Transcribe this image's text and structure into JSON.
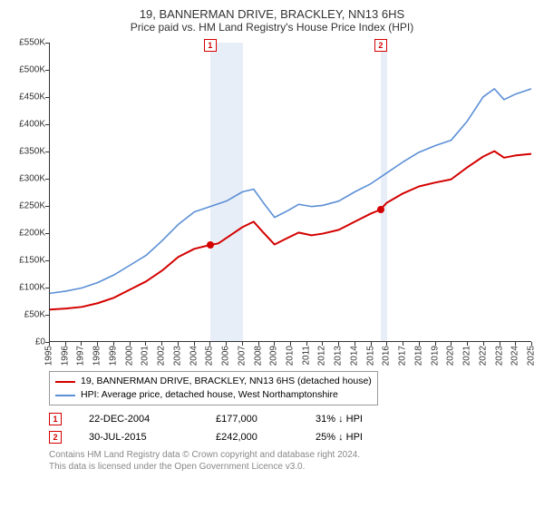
{
  "title": "19, BANNERMAN DRIVE, BRACKLEY, NN13 6HS",
  "subtitle": "Price paid vs. HM Land Registry's House Price Index (HPI)",
  "chart": {
    "type": "line",
    "background_color": "#ffffff",
    "grid_color": "#e0e0e0",
    "axis_color": "#333333",
    "label_fontsize": 10,
    "title_fontsize": 13,
    "y": {
      "min": 0,
      "max": 550,
      "step": 50,
      "prefix": "£",
      "suffix": "K",
      "labels": [
        "£0",
        "£50K",
        "£100K",
        "£150K",
        "£200K",
        "£250K",
        "£300K",
        "£350K",
        "£400K",
        "£450K",
        "£500K",
        "£550K"
      ]
    },
    "x": {
      "min": 1995,
      "max": 2025,
      "step": 1,
      "labels": [
        "1995",
        "1996",
        "1997",
        "1998",
        "1999",
        "2000",
        "2001",
        "2002",
        "2003",
        "2004",
        "2005",
        "2006",
        "2007",
        "2008",
        "2009",
        "2010",
        "2011",
        "2012",
        "2013",
        "2014",
        "2015",
        "2016",
        "2017",
        "2018",
        "2019",
        "2020",
        "2021",
        "2022",
        "2023",
        "2024",
        "2025"
      ]
    },
    "bands": [
      {
        "from": 2004.97,
        "to": 2007.0,
        "color": "#e8eef7"
      },
      {
        "from": 2015.58,
        "to": 2016.0,
        "color": "#e8eef7"
      }
    ],
    "sale_markers": [
      {
        "id": "1",
        "x": 2004.97,
        "y": 177,
        "border": "#d40000",
        "text_color": "#d40000",
        "dot_color": "#d40000"
      },
      {
        "id": "2",
        "x": 2015.58,
        "y": 242,
        "border": "#d40000",
        "text_color": "#d40000",
        "dot_color": "#d40000"
      }
    ],
    "series": [
      {
        "name": "price_paid",
        "color": "#d40000",
        "line_width": 2,
        "points": [
          [
            1995,
            58
          ],
          [
            1996,
            60
          ],
          [
            1997,
            63
          ],
          [
            1998,
            70
          ],
          [
            1999,
            80
          ],
          [
            2000,
            95
          ],
          [
            2001,
            110
          ],
          [
            2002,
            130
          ],
          [
            2003,
            155
          ],
          [
            2004,
            170
          ],
          [
            2004.97,
            177
          ],
          [
            2005.5,
            180
          ],
          [
            2006,
            190
          ],
          [
            2007,
            210
          ],
          [
            2007.7,
            220
          ],
          [
            2008.3,
            200
          ],
          [
            2009,
            178
          ],
          [
            2009.8,
            190
          ],
          [
            2010.5,
            200
          ],
          [
            2011.3,
            195
          ],
          [
            2012,
            198
          ],
          [
            2013,
            205
          ],
          [
            2014,
            220
          ],
          [
            2015,
            235
          ],
          [
            2015.58,
            242
          ],
          [
            2016,
            255
          ],
          [
            2017,
            272
          ],
          [
            2018,
            285
          ],
          [
            2019,
            292
          ],
          [
            2020,
            298
          ],
          [
            2021,
            320
          ],
          [
            2022,
            340
          ],
          [
            2022.7,
            350
          ],
          [
            2023.3,
            338
          ],
          [
            2024,
            342
          ],
          [
            2025,
            345
          ]
        ]
      },
      {
        "name": "hpi",
        "color": "#5b8fd6",
        "line_width": 1.6,
        "points": [
          [
            1995,
            88
          ],
          [
            1996,
            92
          ],
          [
            1997,
            98
          ],
          [
            1998,
            108
          ],
          [
            1999,
            122
          ],
          [
            2000,
            140
          ],
          [
            2001,
            158
          ],
          [
            2002,
            185
          ],
          [
            2003,
            215
          ],
          [
            2004,
            238
          ],
          [
            2005,
            248
          ],
          [
            2006,
            258
          ],
          [
            2007,
            275
          ],
          [
            2007.7,
            280
          ],
          [
            2008.3,
            255
          ],
          [
            2009,
            228
          ],
          [
            2009.8,
            240
          ],
          [
            2010.5,
            252
          ],
          [
            2011.3,
            248
          ],
          [
            2012,
            250
          ],
          [
            2013,
            258
          ],
          [
            2014,
            275
          ],
          [
            2015,
            290
          ],
          [
            2016,
            310
          ],
          [
            2017,
            330
          ],
          [
            2018,
            348
          ],
          [
            2019,
            360
          ],
          [
            2020,
            370
          ],
          [
            2021,
            405
          ],
          [
            2022,
            450
          ],
          [
            2022.7,
            465
          ],
          [
            2023.3,
            445
          ],
          [
            2024,
            455
          ],
          [
            2025,
            465
          ]
        ]
      }
    ]
  },
  "legend": {
    "items": [
      {
        "color": "#d40000",
        "label": "19, BANNERMAN DRIVE, BRACKLEY, NN13 6HS (detached house)"
      },
      {
        "color": "#5b8fd6",
        "label": "HPI: Average price, detached house, West Northamptonshire"
      }
    ]
  },
  "markers_table": [
    {
      "id": "1",
      "border": "#d40000",
      "text_color": "#d40000",
      "date": "22-DEC-2004",
      "price": "£177,000",
      "pct": "31%",
      "arrow": "↓",
      "vs": "HPI"
    },
    {
      "id": "2",
      "border": "#d40000",
      "text_color": "#d40000",
      "date": "30-JUL-2015",
      "price": "£242,000",
      "pct": "25%",
      "arrow": "↓",
      "vs": "HPI"
    }
  ],
  "footer": {
    "line1": "Contains HM Land Registry data © Crown copyright and database right 2024.",
    "line2": "This data is licensed under the Open Government Licence v3.0."
  }
}
